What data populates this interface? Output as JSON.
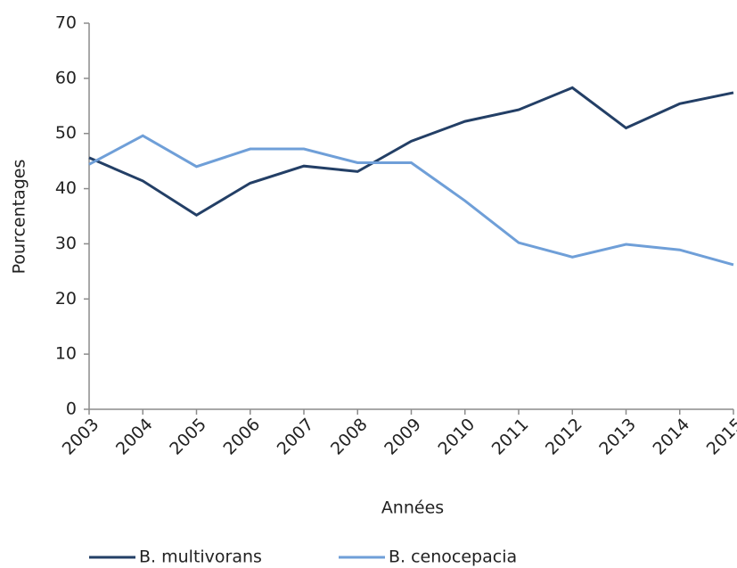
{
  "chart_data": {
    "type": "line",
    "x_label": "Années",
    "y_label": "Pourcentages",
    "categories": [
      "2003",
      "2004",
      "2005",
      "2006",
      "2007",
      "2008",
      "2009",
      "2010",
      "2011",
      "2012",
      "2013",
      "2014",
      "2015"
    ],
    "series": [
      {
        "name": "B. multivorans",
        "color": "#233f66",
        "values": [
          45.6,
          41.4,
          35.2,
          41,
          44.1,
          43.1,
          48.6,
          52.2,
          54.3,
          58.3,
          51,
          55.4,
          57.4
        ]
      },
      {
        "name": "B. cenocepacia",
        "color": "#6f9fd8",
        "values": [
          44.4,
          49.6,
          44,
          47.2,
          47.2,
          44.7,
          44.7,
          37.8,
          30.2,
          27.6,
          29.9,
          28.9,
          26.2
        ]
      }
    ],
    "ylim": [
      0,
      70
    ],
    "yticks": [
      0,
      10,
      20,
      30,
      40,
      50,
      60,
      70
    ],
    "grid": false,
    "legend": "bottom"
  }
}
